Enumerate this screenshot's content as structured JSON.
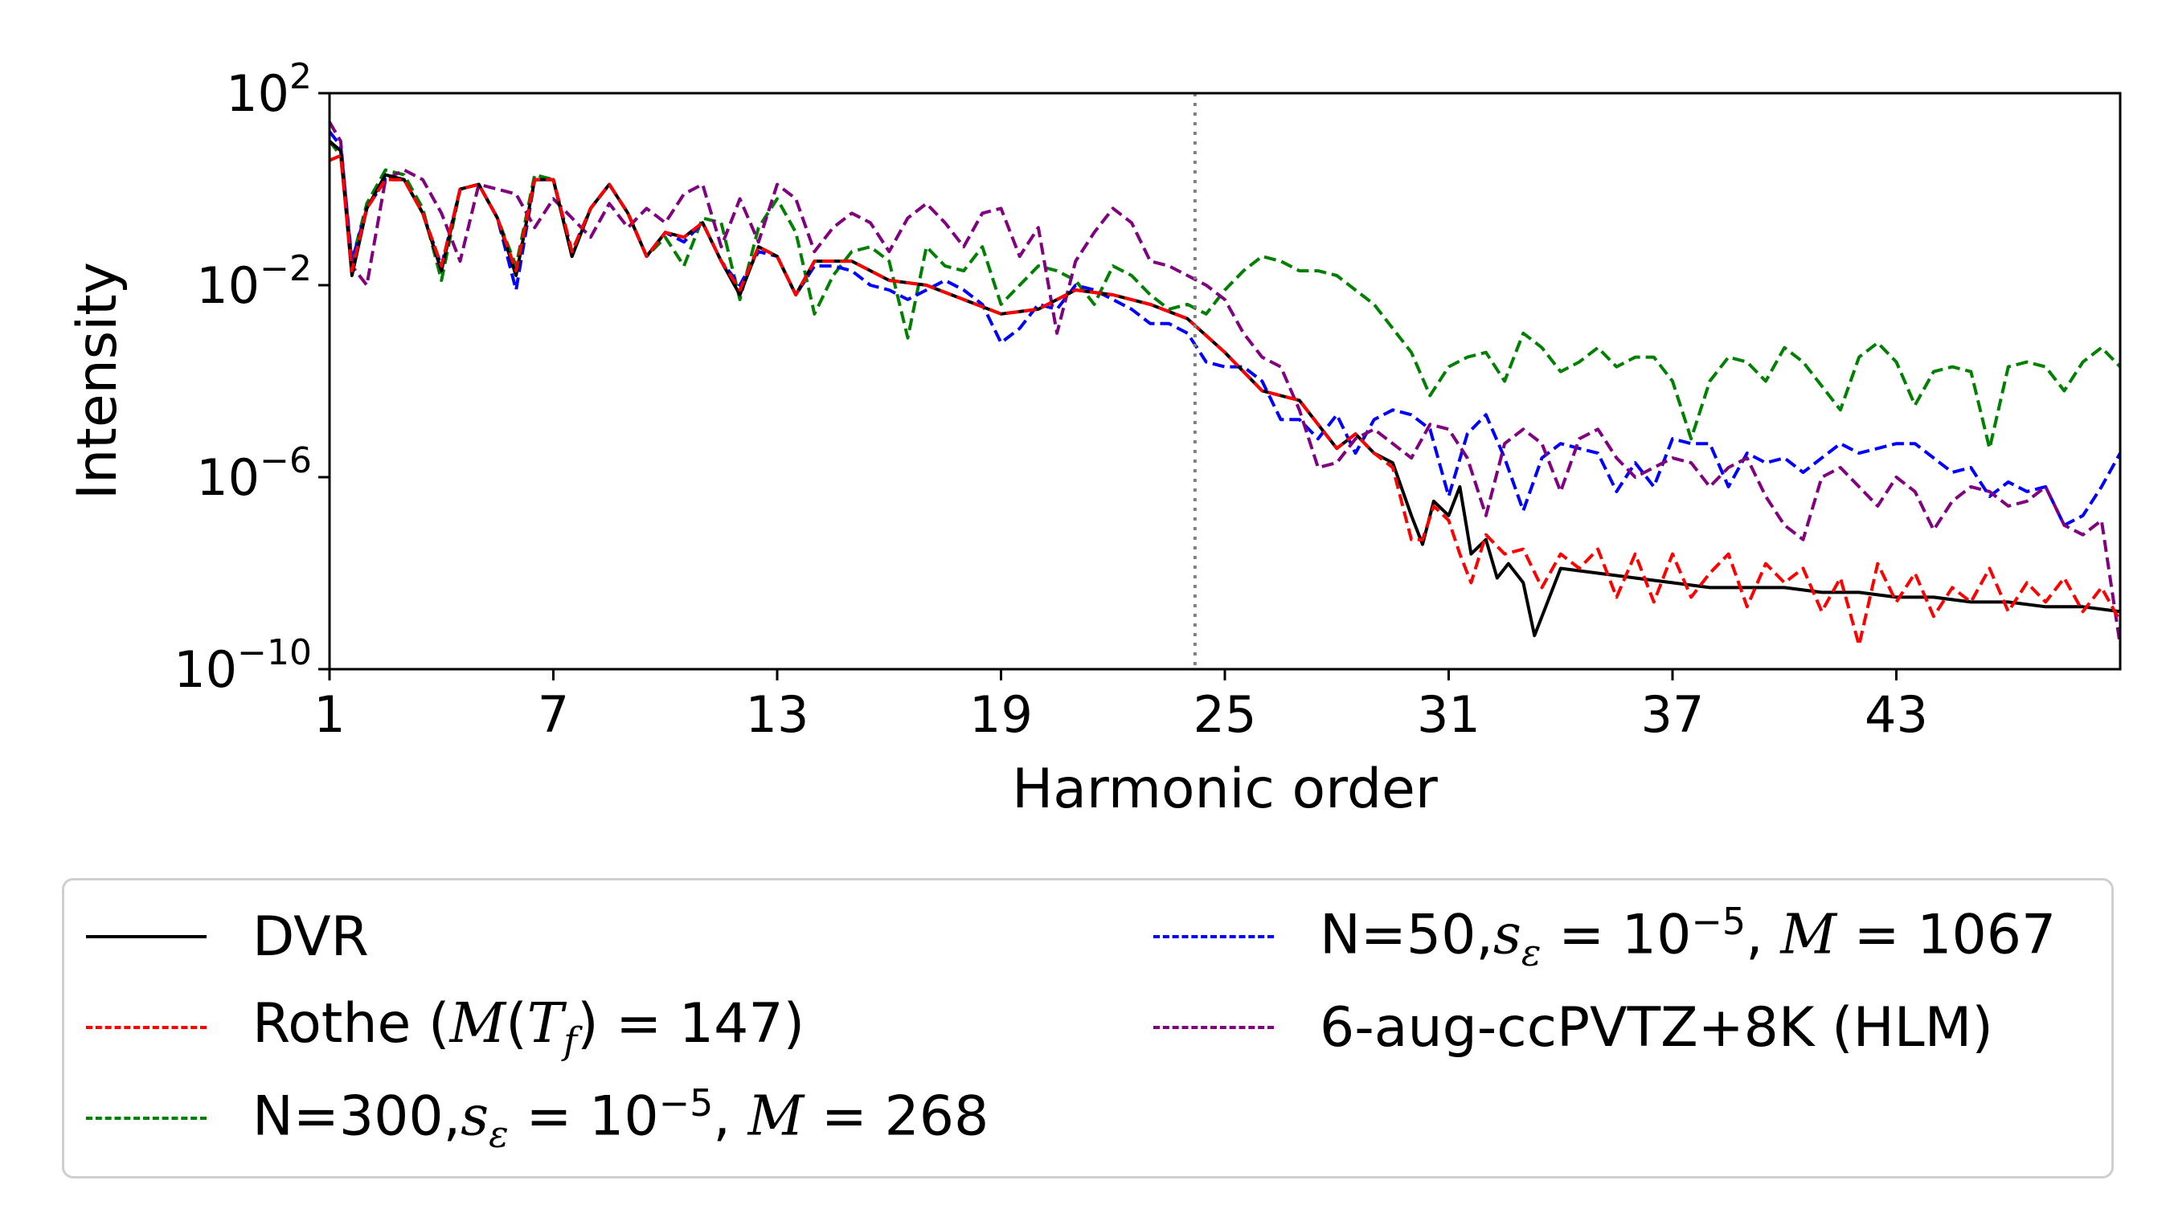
{
  "chart_data": {
    "type": "line",
    "xlabel": "Harmonic order",
    "ylabel": "Intensity",
    "xlim": [
      1,
      49
    ],
    "ylim_log10": [
      -10,
      2
    ],
    "y_scale": "log",
    "x_ticks": [
      1,
      7,
      13,
      19,
      25,
      31,
      37,
      43
    ],
    "x_tick_labels": [
      "1",
      "7",
      "13",
      "19",
      "25",
      "31",
      "37",
      "43"
    ],
    "y_ticks_log10": [
      2,
      -2,
      -6,
      -10
    ],
    "y_tick_labels": [
      {
        "base": "10",
        "exp": "2"
      },
      {
        "base": "10",
        "exp": "−2"
      },
      {
        "base": "10",
        "exp": "−6"
      },
      {
        "base": "10",
        "exp": "−10"
      }
    ],
    "vline_x": 24.2,
    "legend_location": "below",
    "series": [
      {
        "name": "DVR",
        "color": "#000000",
        "dash": "solid",
        "x": [
          1,
          1.3,
          1.6,
          2,
          2.5,
          3,
          3.5,
          4,
          4.5,
          5,
          5.5,
          6,
          6.5,
          7,
          7.5,
          8,
          8.5,
          9,
          9.5,
          10,
          10.5,
          11,
          11.5,
          12,
          12.5,
          13,
          13.5,
          14,
          15,
          16,
          17,
          18,
          19,
          20,
          21,
          22,
          23,
          24,
          25,
          26,
          27,
          27.5,
          28,
          28.5,
          29,
          29.5,
          30,
          30.3,
          30.6,
          31,
          31.3,
          31.6,
          32,
          32.3,
          32.6,
          33,
          33.3,
          34,
          35,
          36,
          37,
          38,
          39,
          40,
          41,
          42,
          43,
          44,
          45,
          46,
          47,
          48,
          49
        ],
        "log10y": [
          1,
          0.8,
          -1.8,
          -0.4,
          0.3,
          0.2,
          -0.5,
          -1.7,
          0,
          0.1,
          -0.6,
          -1.8,
          0.2,
          0.2,
          -1.4,
          -0.4,
          0.1,
          -0.5,
          -1.4,
          -0.9,
          -1,
          -0.7,
          -1.5,
          -2.2,
          -1.2,
          -1.4,
          -2.2,
          -1.5,
          -1.5,
          -1.9,
          -2,
          -2.3,
          -2.6,
          -2.5,
          -2.1,
          -2.2,
          -2.4,
          -2.7,
          -3.4,
          -4.2,
          -4.4,
          -4.9,
          -5.4,
          -5.1,
          -5.5,
          -5.7,
          -6.8,
          -7.4,
          -6.5,
          -6.8,
          -6.2,
          -7.6,
          -7.3,
          -8.1,
          -7.8,
          -8.2,
          -9.3,
          -7.9,
          -8.0,
          -8.1,
          -8.2,
          -8.3,
          -8.3,
          -8.3,
          -8.4,
          -8.4,
          -8.5,
          -8.5,
          -8.6,
          -8.6,
          -8.7,
          -8.7,
          -8.8
        ]
      },
      {
        "name": "Rothe (M(T_f) = 147)",
        "color": "#ff0000",
        "dash": "dashed",
        "x": [
          1,
          1.3,
          1.6,
          2,
          2.5,
          3,
          3.5,
          4,
          4.5,
          5,
          5.5,
          6,
          6.5,
          7,
          7.5,
          8,
          8.5,
          9,
          9.5,
          10,
          10.5,
          11,
          11.5,
          12,
          12.5,
          13,
          13.5,
          14,
          15,
          16,
          17,
          18,
          19,
          20,
          21,
          22,
          23,
          24,
          25,
          26,
          27,
          27.5,
          28,
          28.5,
          29,
          29.5,
          30,
          30.3,
          30.6,
          31,
          31.3,
          31.6,
          32,
          32.5,
          33,
          33.5,
          34,
          34.5,
          35,
          35.5,
          36,
          36.5,
          37,
          37.5,
          38,
          38.5,
          39,
          39.5,
          40,
          40.5,
          41,
          41.5,
          42,
          42.5,
          43,
          43.5,
          44,
          44.5,
          45,
          45.5,
          46,
          46.5,
          47,
          47.5,
          48,
          48.5,
          49
        ],
        "log10y": [
          0.6,
          0.7,
          -1.7,
          -0.4,
          0.2,
          0.2,
          -0.5,
          -1.6,
          0,
          0.1,
          -0.6,
          -1.7,
          0.2,
          0.2,
          -1.3,
          -0.4,
          0.1,
          -0.5,
          -1.4,
          -0.9,
          -1,
          -0.7,
          -1.5,
          -2.1,
          -1.2,
          -1.4,
          -2.2,
          -1.5,
          -1.5,
          -1.9,
          -2,
          -2.3,
          -2.6,
          -2.5,
          -2.1,
          -2.2,
          -2.4,
          -2.7,
          -3.4,
          -4.2,
          -4.4,
          -4.9,
          -5.4,
          -5.1,
          -5.5,
          -5.8,
          -7.3,
          -7.3,
          -6.6,
          -6.9,
          -7.6,
          -8.2,
          -7.2,
          -7.6,
          -7.5,
          -8.3,
          -7.6,
          -7.9,
          -7.5,
          -8.5,
          -7.6,
          -8.6,
          -7.6,
          -8.5,
          -8.0,
          -7.6,
          -8.7,
          -7.8,
          -8.2,
          -7.9,
          -8.8,
          -8.1,
          -9.5,
          -7.8,
          -8.6,
          -8.0,
          -8.9,
          -8.3,
          -8.6,
          -7.9,
          -8.8,
          -8.2,
          -8.6,
          -8.1,
          -8.8,
          -8.3,
          -9.0,
          -8.2,
          -8.8
        ]
      },
      {
        "name": "N=300, s_ε = 10^-5, M = 268",
        "color": "#008000",
        "dash": "dashed",
        "x": [
          1,
          1.3,
          1.6,
          2,
          2.5,
          3,
          3.5,
          4,
          4.5,
          5,
          5.5,
          6,
          6.5,
          7,
          7.5,
          8,
          8.5,
          9,
          9.5,
          10,
          10.5,
          11,
          11.5,
          12,
          12.5,
          13,
          13.5,
          14,
          14.5,
          15,
          15.5,
          16,
          16.5,
          17,
          17.5,
          18,
          18.5,
          19,
          19.5,
          20,
          20.5,
          21,
          21.5,
          22,
          22.5,
          23,
          23.5,
          24,
          24.5,
          25,
          25.5,
          26,
          26.5,
          27,
          27.5,
          28,
          28.5,
          29,
          29.5,
          30,
          30.5,
          31,
          31.5,
          32,
          32.5,
          33,
          33.5,
          34,
          34.5,
          35,
          35.5,
          36,
          36.5,
          37,
          37.5,
          38,
          38.5,
          39,
          39.5,
          40,
          40.5,
          41,
          41.5,
          42,
          42.5,
          43,
          43.5,
          44,
          44.5,
          45,
          45.5,
          46,
          46.5,
          47,
          47.5,
          48,
          48.5,
          49
        ],
        "log10y": [
          1,
          0.7,
          -1.5,
          -0.3,
          0.4,
          0.3,
          -0.4,
          -1.9,
          0,
          0.1,
          -0.6,
          -1.6,
          0.3,
          0.2,
          -1.4,
          -0.4,
          0.1,
          -0.5,
          -1.4,
          -1,
          -1.6,
          -0.6,
          -0.7,
          -2.3,
          -0.8,
          -0.2,
          -0.9,
          -2.6,
          -1.8,
          -1.3,
          -1.2,
          -1.5,
          -3.1,
          -1.2,
          -1.6,
          -1.7,
          -1.2,
          -2.4,
          -2,
          -1.6,
          -1.7,
          -1.9,
          -2.4,
          -1.6,
          -1.8,
          -2.2,
          -2.5,
          -2.4,
          -2.6,
          -2.1,
          -1.7,
          -1.4,
          -1.5,
          -1.7,
          -1.7,
          -1.8,
          -2.1,
          -2.4,
          -2.9,
          -3.4,
          -4.3,
          -3.7,
          -3.5,
          -3.4,
          -4,
          -3,
          -3.3,
          -3.8,
          -3.6,
          -3.3,
          -3.7,
          -3.5,
          -3.5,
          -4.0,
          -5.2,
          -4.0,
          -3.5,
          -3.6,
          -4.0,
          -3.3,
          -3.6,
          -4.1,
          -4.6,
          -3.5,
          -3.2,
          -3.6,
          -4.5,
          -3.8,
          -3.7,
          -3.8,
          -5.4,
          -3.7,
          -3.6,
          -3.7,
          -4.2,
          -3.6,
          -3.3,
          -3.7,
          -4.4
        ]
      },
      {
        "name": "N=50, s_ε = 10^-5, M = 1067",
        "color": "#0000ff",
        "dash": "dashed",
        "x": [
          1,
          1.3,
          1.6,
          2,
          2.5,
          3,
          3.5,
          4,
          4.5,
          5,
          5.5,
          6,
          6.5,
          7,
          7.5,
          8,
          8.5,
          9,
          9.5,
          10,
          10.5,
          11,
          11.5,
          12,
          12.5,
          13,
          13.5,
          14,
          14.5,
          15,
          15.5,
          16,
          16.5,
          17,
          17.5,
          18,
          18.5,
          19,
          19.5,
          20,
          20.5,
          21,
          21.5,
          22,
          22.5,
          23,
          23.5,
          24,
          24.5,
          25,
          25.5,
          26,
          26.5,
          27,
          27.5,
          28,
          28.5,
          29,
          29.5,
          30,
          30.5,
          31,
          31.5,
          32,
          32.5,
          33,
          33.5,
          34,
          34.5,
          35,
          35.5,
          36,
          36.5,
          37,
          37.5,
          38,
          38.5,
          39,
          39.5,
          40,
          40.5,
          41,
          41.5,
          42,
          42.5,
          43,
          43.5,
          44,
          44.5,
          45,
          45.5,
          46,
          46.5,
          47,
          47.5,
          48,
          48.5,
          49
        ],
        "log10y": [
          1.2,
          0.9,
          -1.5,
          -0.4,
          0.2,
          0.2,
          -0.5,
          -1.6,
          0,
          0.1,
          -0.6,
          -2.1,
          0.2,
          0.2,
          -1.3,
          -0.4,
          0.1,
          -0.5,
          -1.4,
          -0.9,
          -1.1,
          -0.7,
          -1.5,
          -2,
          -1.3,
          -1.4,
          -2.2,
          -1.6,
          -1.6,
          -1.7,
          -2,
          -2.1,
          -2.3,
          -2.1,
          -1.9,
          -2.1,
          -2.4,
          -3.2,
          -2.9,
          -2.4,
          -2.5,
          -2,
          -2.1,
          -2.3,
          -2.5,
          -2.8,
          -2.8,
          -3.0,
          -3.6,
          -3.7,
          -3.7,
          -4.0,
          -4.8,
          -4.8,
          -5.2,
          -4.7,
          -5.5,
          -4.8,
          -4.6,
          -4.7,
          -5.0,
          -6.4,
          -5.1,
          -4.7,
          -5.6,
          -6.7,
          -5.6,
          -5.3,
          -5.4,
          -5.5,
          -6.3,
          -5.7,
          -6.2,
          -5.2,
          -5.3,
          -5.3,
          -6.2,
          -5.5,
          -5.7,
          -5.6,
          -5.9,
          -5.6,
          -5.3,
          -5.5,
          -5.4,
          -5.3,
          -5.3,
          -5.6,
          -5.9,
          -5.8,
          -6.4,
          -6.1,
          -6.3,
          -6.2,
          -7.0,
          -6.8,
          -6.2,
          -5.5,
          -5.3
        ]
      },
      {
        "name": "6-aug-ccPVTZ+8K (HLM)",
        "color": "#800080",
        "dash": "dashed",
        "x": [
          1,
          1.3,
          1.6,
          2,
          2.5,
          3,
          3.5,
          4,
          4.5,
          5,
          5.5,
          6,
          6.5,
          7,
          7.5,
          8,
          8.5,
          9,
          9.5,
          10,
          10.5,
          11,
          11.5,
          12,
          12.5,
          13,
          13.5,
          14,
          14.5,
          15,
          15.5,
          16,
          16.5,
          17,
          17.5,
          18,
          18.5,
          19,
          19.5,
          20,
          20.5,
          21,
          21.5,
          22,
          22.5,
          23,
          23.5,
          24,
          24.5,
          25,
          25.5,
          26,
          26.5,
          27,
          27.5,
          28,
          28.5,
          29,
          29.5,
          30,
          30.5,
          31,
          31.5,
          32,
          32.5,
          33,
          33.5,
          34,
          34.5,
          35,
          35.5,
          36,
          36.5,
          37,
          37.5,
          38,
          38.5,
          39,
          39.5,
          40,
          40.5,
          41,
          41.5,
          42,
          42.5,
          43,
          43.5,
          44,
          44.5,
          45,
          45.5,
          46,
          46.5,
          47,
          47.5,
          48,
          48.5,
          49
        ],
        "log10y": [
          1.4,
          1.0,
          -1.6,
          -2.0,
          0.2,
          0.4,
          0.2,
          -0.5,
          -1.5,
          0.1,
          0,
          -0.1,
          -0.8,
          -0.2,
          -0.6,
          -1.0,
          -0.3,
          -0.8,
          -0.4,
          -0.7,
          -0.1,
          0.1,
          -1.2,
          -0.2,
          -1.1,
          0.1,
          -0.2,
          -1.3,
          -0.8,
          -0.5,
          -0.7,
          -1.3,
          -0.6,
          -0.3,
          -0.7,
          -1.2,
          -0.5,
          -0.4,
          -1.4,
          -0.8,
          -3.0,
          -1.5,
          -0.9,
          -0.4,
          -0.7,
          -1.5,
          -1.6,
          -1.8,
          -2.0,
          -2.3,
          -3.0,
          -3.5,
          -3.7,
          -4.6,
          -5.8,
          -5.7,
          -5.2,
          -5.0,
          -5.3,
          -5.6,
          -4.9,
          -5.0,
          -5.6,
          -6.8,
          -5.3,
          -5.0,
          -5.3,
          -6.3,
          -5.2,
          -5.0,
          -5.6,
          -6.0,
          -5.8,
          -5.6,
          -5.7,
          -6.2,
          -5.8,
          -5.6,
          -6.4,
          -7.0,
          -7.3,
          -6.0,
          -5.8,
          -6.2,
          -6.6,
          -6.0,
          -6.3,
          -7.1,
          -6.5,
          -6.2,
          -6.3,
          -6.6,
          -6.5,
          -6.2,
          -7.0,
          -7.2,
          -6.9,
          -9.5,
          -7.8
        ]
      }
    ]
  }
}
